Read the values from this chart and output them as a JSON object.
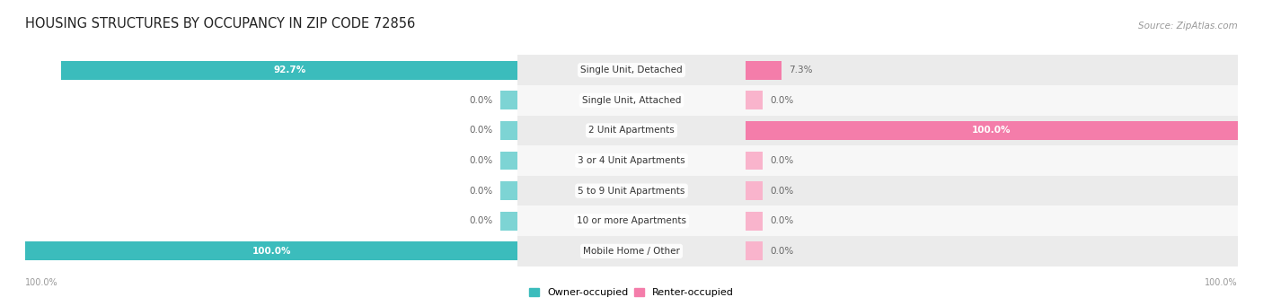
{
  "title": "HOUSING STRUCTURES BY OCCUPANCY IN ZIP CODE 72856",
  "source": "Source: ZipAtlas.com",
  "categories": [
    "Single Unit, Detached",
    "Single Unit, Attached",
    "2 Unit Apartments",
    "3 or 4 Unit Apartments",
    "5 to 9 Unit Apartments",
    "10 or more Apartments",
    "Mobile Home / Other"
  ],
  "owner_values": [
    92.7,
    0.0,
    0.0,
    0.0,
    0.0,
    0.0,
    100.0
  ],
  "renter_values": [
    7.3,
    0.0,
    100.0,
    0.0,
    0.0,
    0.0,
    0.0
  ],
  "owner_color": "#3bbcbc",
  "renter_color": "#f47daa",
  "owner_stub_color": "#7dd4d4",
  "renter_stub_color": "#f9b4cc",
  "row_bg_even": "#ebebeb",
  "row_bg_odd": "#f7f7f7",
  "title_fontsize": 10.5,
  "cat_fontsize": 7.5,
  "val_fontsize": 7.5,
  "source_fontsize": 7.5,
  "legend_fontsize": 8,
  "tick_fontsize": 7,
  "fig_bg_color": "#ffffff",
  "legend_owner": "Owner-occupied",
  "legend_renter": "Renter-occupied",
  "stub_pct": 3.5,
  "max_val": 100
}
